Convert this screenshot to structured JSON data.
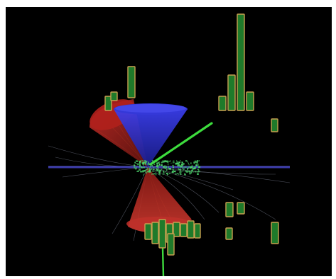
{
  "image": {
    "kind": "particle-collision-event-display",
    "background_color": "#000000",
    "frame_color": "#ffffff",
    "colors": {
      "jet_cone_red": "#b0201c",
      "jet_cone_blue": "#2428c8",
      "track_green": "#3ddc3d",
      "beam_line_blue": "#3a3aa8",
      "tower_fill_green": "#1f7a2a",
      "tower_outline_tan": "#c8a050",
      "hits_green": "#4bd06a",
      "tracks_grey": "#9aa0b0",
      "tracks_orange": "#c86a28"
    }
  }
}
